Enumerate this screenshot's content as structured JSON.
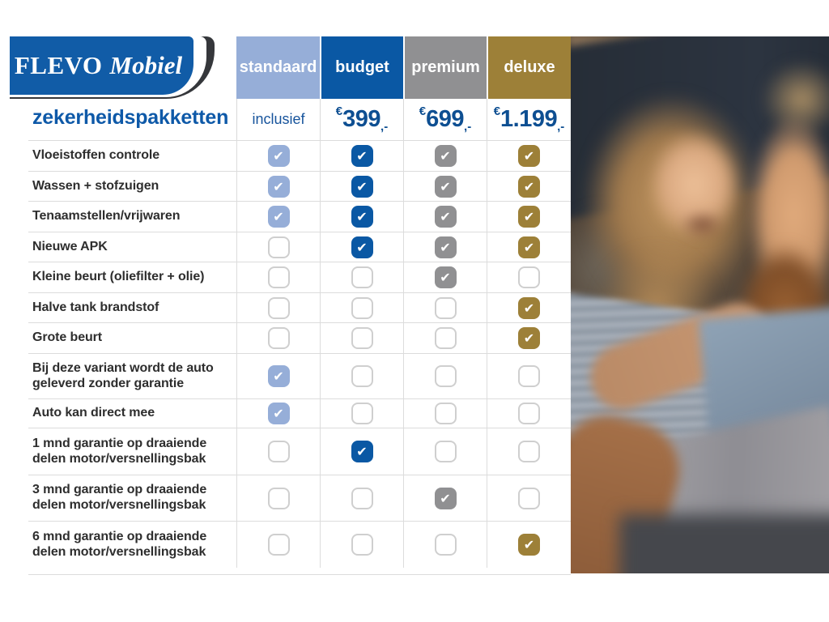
{
  "brand": {
    "primary": "FLEVO",
    "secondary": "Mobiel"
  },
  "page_title": "zekerheidspakketten",
  "icons": {
    "check_icon": "✔"
  },
  "colors": {
    "logo_blue": "#115ca7",
    "logo_dark": "#35373b",
    "title_blue": "#0e59a8",
    "price_blue": "#0e4f92",
    "grid_line": "#dcdcdc"
  },
  "chart_data": {
    "type": "table",
    "title": "zekerheidspakketten",
    "columns": [
      {
        "id": "standaard",
        "label": "standaard",
        "price_text": "inclusief",
        "color": "#96aed8"
      },
      {
        "id": "budget",
        "label": "budget",
        "euro": "€",
        "amount": "399",
        "suffix": ",-",
        "color": "#0a58a4"
      },
      {
        "id": "premium",
        "label": "premium",
        "euro": "€",
        "amount": "699",
        "suffix": ",-",
        "color": "#909092"
      },
      {
        "id": "deluxe",
        "label": "deluxe",
        "euro": "€",
        "amount": "1.199",
        "suffix": ",-",
        "color": "#9d8038"
      }
    ],
    "rows": [
      {
        "label": "Vloeistoffen controle",
        "checks": [
          true,
          true,
          true,
          true
        ]
      },
      {
        "label": "Wassen + stofzuigen",
        "checks": [
          true,
          true,
          true,
          true
        ]
      },
      {
        "label": "Tenaamstellen/vrijwaren",
        "checks": [
          true,
          true,
          true,
          true
        ]
      },
      {
        "label": "Nieuwe APK",
        "checks": [
          false,
          true,
          true,
          true
        ]
      },
      {
        "label": "Kleine beurt (oliefilter + olie)",
        "checks": [
          false,
          false,
          true,
          false
        ]
      },
      {
        "label": "Halve tank brandstof",
        "checks": [
          false,
          false,
          false,
          true
        ]
      },
      {
        "label": "Grote beurt",
        "checks": [
          false,
          false,
          false,
          true
        ]
      },
      {
        "label": "Bij deze variant wordt de auto geleverd zonder garantie",
        "checks": [
          true,
          false,
          false,
          false
        ]
      },
      {
        "label": "Auto kan direct mee",
        "checks": [
          true,
          false,
          false,
          false
        ]
      },
      {
        "label": "1 mnd garantie op draaiende delen motor/versnellingsbak",
        "checks": [
          false,
          true,
          false,
          false
        ]
      },
      {
        "label": "3 mnd garantie op draaiende delen motor/versnellingsbak",
        "checks": [
          false,
          false,
          true,
          false
        ]
      },
      {
        "label": "6 mnd garantie op draaiende delen motor/versnellingsbak",
        "checks": [
          false,
          false,
          false,
          true
        ]
      }
    ]
  }
}
